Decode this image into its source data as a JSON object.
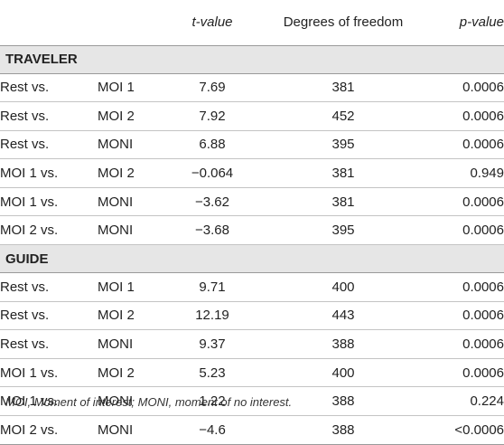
{
  "table": {
    "columns": [
      "",
      "",
      "t-value",
      "Degrees of freedom",
      "p-value"
    ],
    "sections": [
      {
        "label": "TRAVELER",
        "rows": [
          [
            "Rest vs.",
            "MOI 1",
            "7.69",
            "381",
            "0.0006"
          ],
          [
            "Rest vs.",
            "MOI 2",
            "7.92",
            "452",
            "0.0006"
          ],
          [
            "Rest vs.",
            "MONI",
            "6.88",
            "395",
            "0.0006"
          ],
          [
            "MOI 1 vs.",
            "MOI 2",
            "−0.064",
            "381",
            "0.949"
          ],
          [
            "MOI 1 vs.",
            "MONI",
            "−3.62",
            "381",
            "0.0006"
          ],
          [
            "MOI 2 vs.",
            "MONI",
            "−3.68",
            "395",
            "0.0006"
          ]
        ]
      },
      {
        "label": "GUIDE",
        "rows": [
          [
            "Rest vs.",
            "MOI 1",
            "9.71",
            "400",
            "0.0006"
          ],
          [
            "Rest vs.",
            "MOI 2",
            "12.19",
            "443",
            "0.0006"
          ],
          [
            "Rest vs.",
            "MONI",
            "9.37",
            "388",
            "0.0006"
          ],
          [
            "MOI 1 vs.",
            "MOI 2",
            "5.23",
            "400",
            "0.0006"
          ],
          [
            "MOI 1 vs.",
            "MONI",
            "1.22",
            "388",
            "0.224"
          ],
          [
            "MOI 2 vs.",
            "MONI",
            "−4.6",
            "388",
            "<0.0006"
          ]
        ]
      }
    ]
  },
  "footnote": "MOI, Moment of interest; MONI, moment of no interest."
}
